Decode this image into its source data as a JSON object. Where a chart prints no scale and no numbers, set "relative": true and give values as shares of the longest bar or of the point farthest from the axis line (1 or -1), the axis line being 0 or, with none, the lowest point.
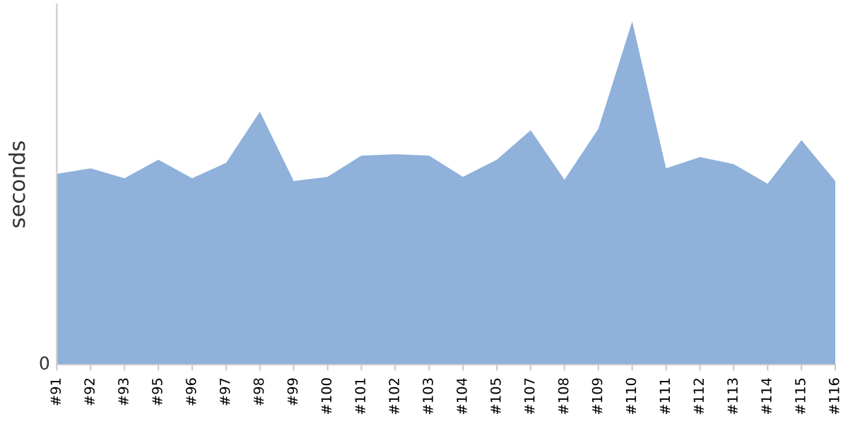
{
  "chart_data": {
    "type": "area",
    "ylabel": "seconds",
    "relative": true,
    "categories": [
      "#91",
      "#92",
      "#93",
      "#95",
      "#96",
      "#97",
      "#98",
      "#99",
      "#100",
      "#101",
      "#102",
      "#103",
      "#104",
      "#105",
      "#107",
      "#108",
      "#109",
      "#110",
      "#111",
      "#112",
      "#113",
      "#114",
      "#115",
      "#116"
    ],
    "series": [
      {
        "color": "#8fb1da",
        "values": [
          0.556,
          0.572,
          0.543,
          0.597,
          0.543,
          0.588,
          0.737,
          0.535,
          0.547,
          0.609,
          0.613,
          0.609,
          0.547,
          0.597,
          0.683,
          0.539,
          0.687,
          1,
          0.572,
          0.605,
          0.584,
          0.527,
          0.654,
          0.535
        ]
      }
    ],
    "annotations": [
      "0"
    ],
    "grid": false,
    "legend": false
  }
}
